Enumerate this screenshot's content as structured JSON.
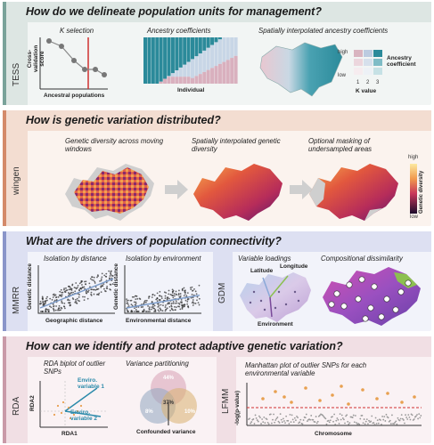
{
  "sections": [
    {
      "title": "How do we delineate population units for management?",
      "label": "TESS",
      "color": "#7aa39a",
      "bg": "#e7eeec"
    },
    {
      "title": "How is genetic variation distributed?",
      "label": "wingen",
      "color": "#d48a6a",
      "bg": "#f6e6dd"
    },
    {
      "title": "What are the drivers of population connectivity?",
      "label": "MMRR",
      "label2": "GDM",
      "color": "#8a95c9",
      "bg": "#e6e8f5"
    },
    {
      "title": "How can we identify and protect adaptive genetic variation?",
      "label": "RDA",
      "label2": "LFMM",
      "color": "#c99aa8",
      "bg": "#f4e7eb"
    }
  ],
  "tess": {
    "k_selection": "K selection",
    "cv_score": "Cross-validation score",
    "ancestral_pops": "Ancestral populations",
    "ancestry_coeff": "Ancestry coefficients",
    "individual": "Individual",
    "spatial_ancestry": "Spatially interpolated ancestry coefficients",
    "legend_high": "high",
    "legend_low": "low",
    "legend_title": "Ancestry coefficient",
    "k_value": "K value",
    "k_ticks": [
      "1",
      "2",
      "3"
    ]
  },
  "wingen": {
    "cap1": "Genetic diversity across moving windows",
    "cap2": "Spatially interpolated genetic diversity",
    "cap3": "Optional masking of undersampled areas",
    "legend_high": "high",
    "legend_low": "low",
    "legend_title": "Genetic diversity"
  },
  "mmrr": {
    "ibd": "Isolation by distance",
    "ibe": "Isolation by environment",
    "y_label": "Genetic distance",
    "x1": "Geographic distance",
    "x2": "Environmental distance"
  },
  "gdm": {
    "loadings": "Variable loadings",
    "latitude": "Latitude",
    "longitude": "Longitude",
    "environment": "Environment",
    "comp": "Compositional dissimilarity"
  },
  "rda": {
    "biplot": "RDA biplot of outlier SNPs",
    "var1": "Enviro. variable 1",
    "var2": "Enviro. variable 2",
    "rda1": "RDA1",
    "rda2": "RDA2",
    "varpart": "Variance partitioning",
    "v_top": "44%",
    "v_mid": "37%",
    "v_left": "8%",
    "v_right": "10%",
    "confounded": "Confounded variance"
  },
  "lfmm": {
    "title": "Manhattan plot of outlier SNPs for each environmental variable",
    "ylabel": "-log(p-value)",
    "xlabel": "Chromosome"
  },
  "colors": {
    "teal": "#2b8a9a",
    "pink": "#c8a0b0",
    "cv_line": "#d03030",
    "lfmm_point": "#e8a050",
    "threshold": "#d03030"
  }
}
